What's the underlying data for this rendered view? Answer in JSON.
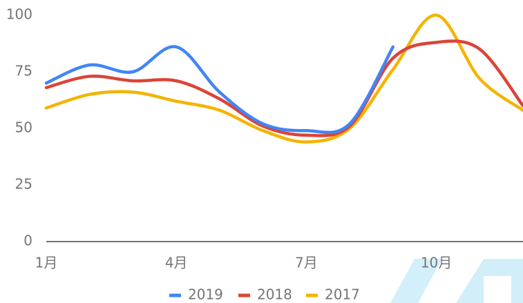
{
  "chart_data": {
    "type": "line",
    "categories": [
      "1月",
      null,
      null,
      "4月",
      null,
      null,
      "7月",
      null,
      null,
      "10月",
      null,
      null
    ],
    "series": [
      {
        "name": "2019",
        "color": "#4285f4",
        "values": [
          70,
          78,
          75,
          86,
          66,
          52,
          49,
          52,
          86,
          null,
          null,
          null
        ]
      },
      {
        "name": "2018",
        "color": "#db4437",
        "values": [
          68,
          73,
          71,
          71,
          63,
          51,
          47,
          51,
          81,
          88,
          85,
          60
        ]
      },
      {
        "name": "2017",
        "color": "#f4b400",
        "values": [
          59,
          65,
          66,
          62,
          58,
          49,
          44,
          50,
          76,
          100,
          72,
          58
        ]
      }
    ],
    "ylim": [
      0,
      100
    ],
    "yticks": [
      0,
      25,
      50,
      75,
      100
    ],
    "grid": false,
    "legend": "bottom"
  }
}
